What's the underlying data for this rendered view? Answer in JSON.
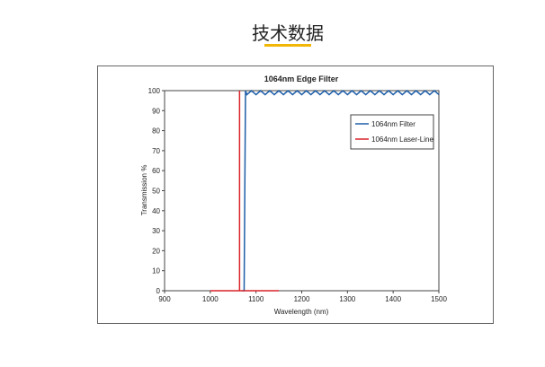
{
  "heading": "技术数据",
  "chart_data": {
    "type": "line",
    "title": "1064nm Edge Filter",
    "x_label": "Wavelength (nm)",
    "y_label": "Transmission %",
    "xlim": [
      900,
      1500
    ],
    "xticks": [
      900,
      1000,
      1100,
      1200,
      1300,
      1400,
      1500
    ],
    "ylim": [
      0,
      100
    ],
    "yticks": [
      0,
      10,
      20,
      30,
      40,
      50,
      60,
      70,
      80,
      90,
      100
    ],
    "legend": "upper right",
    "series": [
      {
        "name": "1064nm Filter",
        "color": "#1f5fa8",
        "x": [
          1070,
          1074,
          1077,
          1080,
          1090,
          1100,
          1110,
          1120,
          1130,
          1140,
          1150,
          1160,
          1170,
          1180,
          1190,
          1200,
          1210,
          1220,
          1230,
          1240,
          1250,
          1260,
          1270,
          1280,
          1290,
          1300,
          1310,
          1320,
          1330,
          1340,
          1350,
          1360,
          1370,
          1380,
          1390,
          1400,
          1410,
          1420,
          1430,
          1440,
          1450,
          1460,
          1470,
          1480,
          1490,
          1500
        ],
        "values": [
          0,
          0,
          100,
          98,
          100,
          98,
          100,
          98,
          100,
          98,
          100,
          98,
          100,
          98,
          100,
          98,
          100,
          98,
          100,
          98,
          100,
          98,
          100,
          98,
          100,
          98,
          100,
          98,
          100,
          98,
          100,
          98,
          100,
          98,
          100,
          98,
          100,
          98,
          100,
          98,
          100,
          98,
          100,
          98,
          100,
          98
        ]
      },
      {
        "name": "1064nm Laser-Line",
        "color": "#d9232a",
        "x": [
          1000,
          1064,
          1064,
          1064,
          1150
        ],
        "values": [
          0,
          0,
          100,
          0,
          0
        ]
      }
    ]
  }
}
